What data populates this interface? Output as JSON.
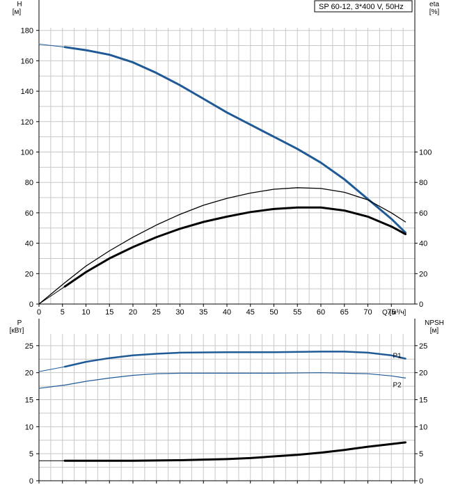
{
  "title": "SP 60-12, 3*400 V, 50Hz",
  "colors": {
    "blue": "#1f5a96",
    "black": "#000000",
    "grid": "#c8c8c8",
    "axis": "#000000"
  },
  "chart_data": [
    {
      "type": "line",
      "name": "top",
      "x_label": "Q [м³/ч]",
      "left_axis_label": [
        "H",
        "[м]"
      ],
      "right_axis_label": [
        "eta",
        "[%]"
      ],
      "xlim": [
        0,
        80
      ],
      "x_ticks": [
        0,
        5,
        10,
        15,
        20,
        25,
        30,
        35,
        40,
        45,
        50,
        55,
        60,
        65,
        70,
        75
      ],
      "left_ylim": [
        0,
        200
      ],
      "left_ticks": [
        0,
        20,
        40,
        60,
        80,
        100,
        120,
        140,
        160,
        180
      ],
      "right_ylim": [
        0,
        200
      ],
      "right_ticks": [
        0,
        20,
        40,
        60,
        80,
        100
      ],
      "grid": true,
      "series": [
        {
          "key": "H_dashed",
          "color": "blue",
          "width": 1,
          "points": [
            [
              0,
              171
            ],
            [
              5.5,
              169
            ]
          ]
        },
        {
          "key": "H",
          "color": "blue",
          "width": 3,
          "points": [
            [
              5.5,
              169
            ],
            [
              10,
              167
            ],
            [
              15,
              164
            ],
            [
              20,
              159
            ],
            [
              25,
              152
            ],
            [
              30,
              144
            ],
            [
              35,
              135
            ],
            [
              40,
              126
            ],
            [
              45,
              118
            ],
            [
              50,
              110
            ],
            [
              55,
              102
            ],
            [
              60,
              93
            ],
            [
              65,
              82
            ],
            [
              70,
              69
            ],
            [
              75,
              56
            ],
            [
              78,
              47
            ]
          ]
        },
        {
          "key": "eta_thin",
          "color": "black",
          "width": 1.3,
          "points": [
            [
              0,
              0
            ],
            [
              5.5,
              14
            ],
            [
              10,
              25
            ],
            [
              15,
              35
            ],
            [
              20,
              44
            ],
            [
              25,
              52
            ],
            [
              30,
              59
            ],
            [
              35,
              65
            ],
            [
              40,
              69.5
            ],
            [
              45,
              73
            ],
            [
              50,
              75.5
            ],
            [
              55,
              76.5
            ],
            [
              60,
              76
            ],
            [
              65,
              73.5
            ],
            [
              70,
              68.5
            ],
            [
              75,
              60
            ],
            [
              78,
              54
            ]
          ]
        },
        {
          "key": "eta_bold",
          "color": "black",
          "width": 3,
          "points": [
            [
              5.5,
              11.5
            ],
            [
              10,
              21
            ],
            [
              15,
              30
            ],
            [
              20,
              37.5
            ],
            [
              25,
              44
            ],
            [
              30,
              49.5
            ],
            [
              35,
              54
            ],
            [
              40,
              57.5
            ],
            [
              45,
              60.5
            ],
            [
              50,
              62.5
            ],
            [
              55,
              63.5
            ],
            [
              60,
              63.5
            ],
            [
              65,
              61.5
            ],
            [
              70,
              57.5
            ],
            [
              75,
              51
            ],
            [
              78,
              46
            ]
          ]
        },
        {
          "key": "eta_thin_lead",
          "color": "black",
          "width": 1,
          "points": [
            [
              0,
              0
            ],
            [
              5.5,
              11.5
            ]
          ]
        }
      ]
    },
    {
      "type": "line",
      "name": "bottom",
      "left_axis_label": [
        "P",
        "[кВт]"
      ],
      "right_axis_label": [
        "NPSH",
        "[м]"
      ],
      "xlim": [
        0,
        80
      ],
      "left_ylim": [
        0,
        30
      ],
      "left_ticks": [
        0,
        5,
        10,
        15,
        20,
        25
      ],
      "right_ylim": [
        0,
        30
      ],
      "right_ticks": [
        0,
        5,
        10,
        15,
        20,
        25
      ],
      "grid": true,
      "series": [
        {
          "key": "P1_lead",
          "color": "blue",
          "width": 1,
          "points": [
            [
              0,
              20.2
            ],
            [
              5.5,
              21.1
            ]
          ]
        },
        {
          "key": "P1",
          "name": "P1",
          "color": "blue",
          "width": 2.5,
          "points": [
            [
              5.5,
              21.1
            ],
            [
              10,
              22
            ],
            [
              15,
              22.7
            ],
            [
              20,
              23.2
            ],
            [
              25,
              23.5
            ],
            [
              30,
              23.7
            ],
            [
              40,
              23.8
            ],
            [
              50,
              23.8
            ],
            [
              60,
              23.9
            ],
            [
              65,
              23.9
            ],
            [
              70,
              23.7
            ],
            [
              75,
              23.2
            ],
            [
              78,
              22.6
            ]
          ]
        },
        {
          "key": "P2",
          "name": "P2",
          "color": "blue",
          "width": 1.2,
          "points": [
            [
              0,
              17.1
            ],
            [
              5.5,
              17.7
            ],
            [
              10,
              18.4
            ],
            [
              15,
              19.0
            ],
            [
              20,
              19.5
            ],
            [
              25,
              19.8
            ],
            [
              30,
              19.9
            ],
            [
              40,
              19.9
            ],
            [
              50,
              19.9
            ],
            [
              60,
              20.0
            ],
            [
              65,
              19.9
            ],
            [
              70,
              19.8
            ],
            [
              75,
              19.4
            ],
            [
              78,
              19.0
            ]
          ]
        },
        {
          "key": "NPSH_lead",
          "color": "black",
          "width": 1,
          "points": [
            [
              0,
              3.7
            ],
            [
              5.5,
              3.7
            ]
          ]
        },
        {
          "key": "NPSH",
          "color": "black",
          "width": 3,
          "points": [
            [
              5.5,
              3.7
            ],
            [
              10,
              3.7
            ],
            [
              20,
              3.7
            ],
            [
              30,
              3.8
            ],
            [
              40,
              4.0
            ],
            [
              45,
              4.2
            ],
            [
              50,
              4.5
            ],
            [
              55,
              4.8
            ],
            [
              60,
              5.2
            ],
            [
              65,
              5.7
            ],
            [
              70,
              6.3
            ],
            [
              75,
              6.8
            ],
            [
              78,
              7.1
            ]
          ]
        }
      ]
    }
  ]
}
